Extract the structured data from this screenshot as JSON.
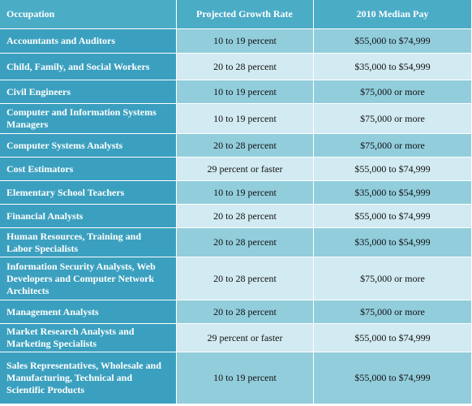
{
  "header": {
    "occupation": "Occupation",
    "growth": "Projected Growth Rate",
    "pay": "2010 Median Pay"
  },
  "rows": [
    {
      "occupation": "Accountants and Auditors",
      "growth": "10 to 19 percent",
      "pay": "$55,000 to $74,999"
    },
    {
      "occupation": "Child, Family, and Social Workers",
      "growth": "20 to 28 percent",
      "pay": "$35,000 to $54,999"
    },
    {
      "occupation": "Civil Engineers",
      "growth": "10 to 19 percent",
      "pay": "$75,000 or more"
    },
    {
      "occupation": "Computer and Information Systems Managers",
      "growth": "10 to 19 percent",
      "pay": "$75,000 or more"
    },
    {
      "occupation": "Computer Systems Analysts",
      "growth": "20 to 28 percent",
      "pay": "$75,000 or more"
    },
    {
      "occupation": "Cost Estimators",
      "growth": "29 percent or faster",
      "pay": "$55,000 to $74,999"
    },
    {
      "occupation": "Elementary School Teachers",
      "growth": "10 to 19 percent",
      "pay": "$35,000 to $54,999"
    },
    {
      "occupation": "Financial Analysts",
      "growth": "20 to 28 percent",
      "pay": "$55,000 to $74,999"
    },
    {
      "occupation": "Human Resources, Training and Labor Specialists",
      "growth": "20 to 28 percent",
      "pay": "$35,000 to $54,999"
    },
    {
      "occupation": "Information Security Analysts, Web Developers and Computer Network Architects",
      "growth": "20 to 28 percent",
      "pay": "$75,000 or more"
    },
    {
      "occupation": "Management Analysts",
      "growth": "20 to 28 percent",
      "pay": "$75,000 or more"
    },
    {
      "occupation": "Market Research Analysts and Marketing Specialists",
      "growth": "29 percent or faster",
      "pay": "$55,000 to $74,999"
    },
    {
      "occupation": "Sales Representatives, Wholesale and Manufacturing, Technical and Scientific Products",
      "growth": "10 to 19 percent",
      "pay": "$55,000 to $74,999"
    }
  ],
  "colors": {
    "header": "#4bacc6",
    "occupation_cell": "#3ba0bf",
    "row_dark": "#92cddc",
    "row_light": "#d2eaf1"
  }
}
